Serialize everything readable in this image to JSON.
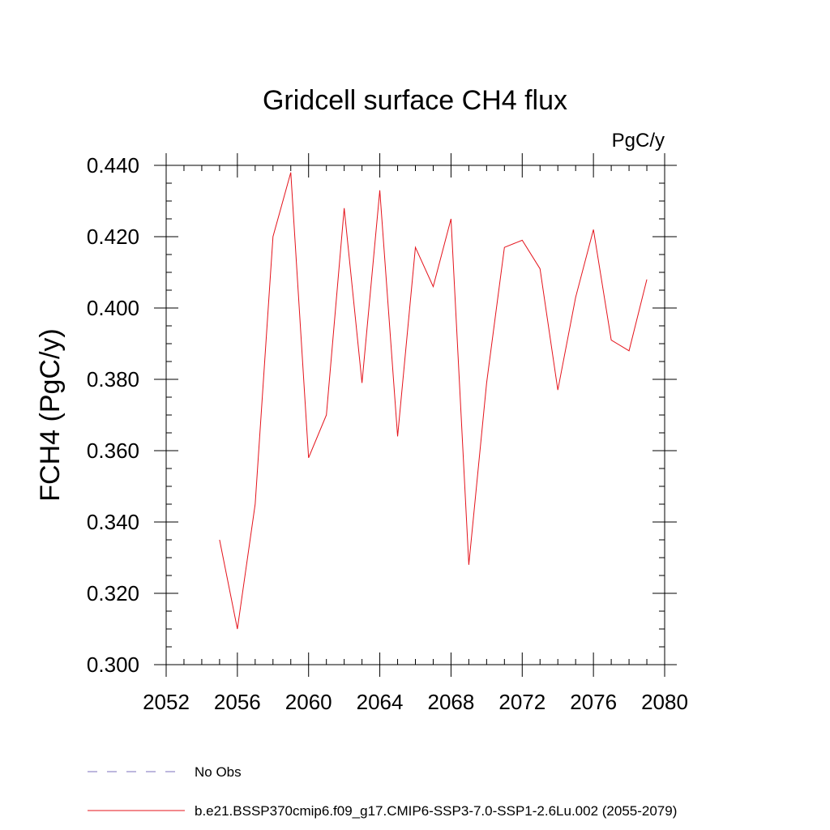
{
  "chart_data": {
    "type": "line",
    "title": "Gridcell surface CH4 flux",
    "units_label": "PgC/y",
    "xlabel": "",
    "ylabel": "FCH4  (PgC/y)",
    "xlim": [
      2052,
      2080
    ],
    "ylim": [
      0.3,
      0.44
    ],
    "x_ticks": [
      2052,
      2056,
      2060,
      2064,
      2068,
      2072,
      2076,
      2080
    ],
    "x_tick_labels": [
      "2052",
      "2056",
      "2060",
      "2064",
      "2068",
      "2072",
      "2076",
      "2080"
    ],
    "y_ticks": [
      0.3,
      0.32,
      0.34,
      0.36,
      0.38,
      0.4,
      0.42,
      0.44
    ],
    "y_tick_labels": [
      "0.300",
      "0.320",
      "0.340",
      "0.360",
      "0.380",
      "0.400",
      "0.420",
      "0.440"
    ],
    "x_minor_step": 1,
    "y_minor_step": 0.005,
    "grid": false,
    "legend_position": "bottom-left",
    "series": [
      {
        "name": "b.e21.BSSP370cmip6.f09_g17.CMIP6-SSP3-7.0-SSP1-2.6Lu.002 (2055-2079)",
        "color": "#e4131b",
        "dash": "solid",
        "x": [
          2055,
          2056,
          2057,
          2058,
          2059,
          2060,
          2061,
          2062,
          2063,
          2064,
          2065,
          2066,
          2067,
          2068,
          2069,
          2070,
          2071,
          2072,
          2073,
          2074,
          2075,
          2076,
          2077,
          2078,
          2079
        ],
        "values": [
          0.335,
          0.31,
          0.345,
          0.42,
          0.438,
          0.358,
          0.37,
          0.428,
          0.379,
          0.433,
          0.364,
          0.417,
          0.406,
          0.425,
          0.328,
          0.379,
          0.417,
          0.419,
          0.411,
          0.377,
          0.403,
          0.422,
          0.391,
          0.388,
          0.408
        ]
      }
    ],
    "legend": [
      {
        "label": "No Obs",
        "color": "#7b6fbd",
        "dash": "dashed"
      },
      {
        "label": "b.e21.BSSP370cmip6.f09_g17.CMIP6-SSP3-7.0-SSP1-2.6Lu.002 (2055-2079)",
        "color": "#e4131b",
        "dash": "solid"
      }
    ]
  }
}
